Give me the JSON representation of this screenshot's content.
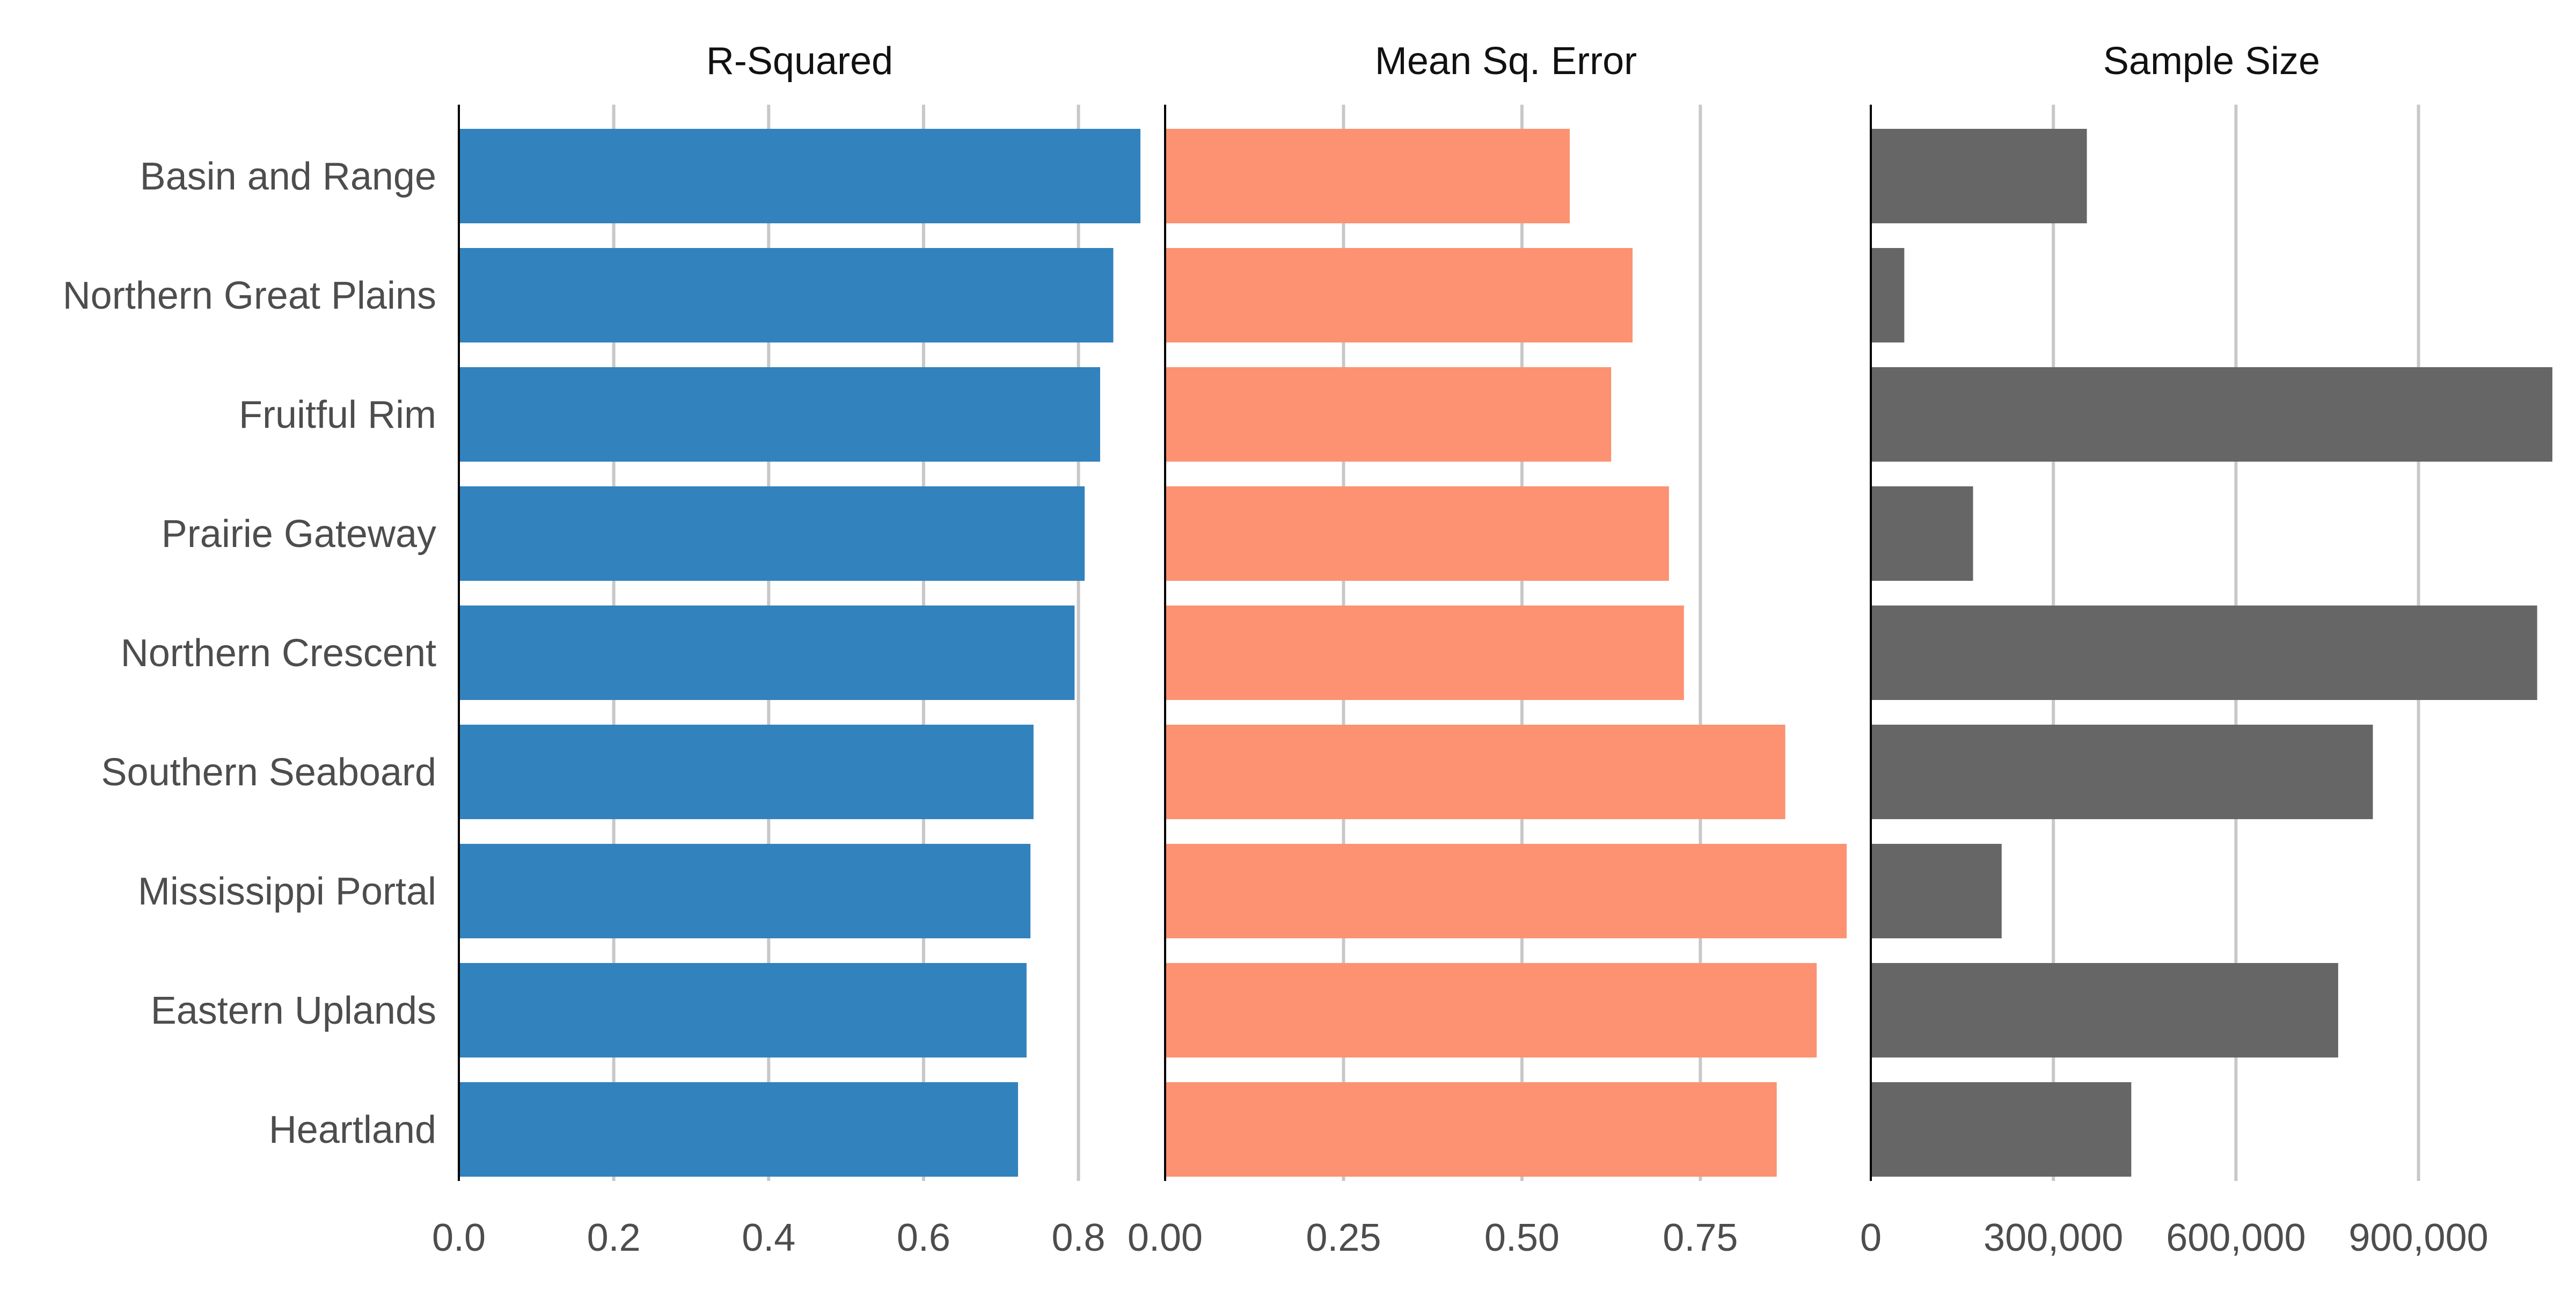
{
  "chart_data": {
    "type": "bar",
    "orientation": "horizontal",
    "categories": [
      "Basin and Range",
      "Northern Great Plains",
      "Fruitful Rim",
      "Prairie Gateway",
      "Northern Crescent",
      "Southern Seaboard",
      "Mississippi Portal",
      "Eastern Uplands",
      "Heartland"
    ],
    "panels": [
      {
        "title": "R-Squared",
        "color": "#3282bd",
        "values": [
          0.88,
          0.845,
          0.828,
          0.808,
          0.795,
          0.742,
          0.738,
          0.733,
          0.722
        ],
        "xlim": [
          0,
          0.88
        ],
        "ticks": [
          0,
          0.2,
          0.4,
          0.6,
          0.8
        ],
        "tick_labels": [
          "0.0",
          "0.2",
          "0.4",
          "0.6",
          "0.8"
        ]
      },
      {
        "title": "Mean Sq. Error",
        "color": "#fc9272",
        "values": [
          0.567,
          0.655,
          0.625,
          0.706,
          0.727,
          0.869,
          0.955,
          0.913,
          0.857
        ],
        "xlim": [
          0,
          0.955
        ],
        "ticks": [
          0,
          0.25,
          0.5,
          0.75
        ],
        "tick_labels": [
          "0.00",
          "0.25",
          "0.50",
          "0.75"
        ]
      },
      {
        "title": "Sample Size",
        "color": "#666666",
        "values": [
          355000,
          55000,
          1120000,
          168000,
          1095000,
          825000,
          215000,
          768000,
          428000
        ],
        "xlim": [
          0,
          1120000
        ],
        "ticks": [
          0,
          300000,
          600000,
          900000
        ],
        "tick_labels": [
          "0",
          "300,000",
          "600,000",
          "900,000"
        ]
      }
    ],
    "grid": true,
    "legend": "none"
  }
}
